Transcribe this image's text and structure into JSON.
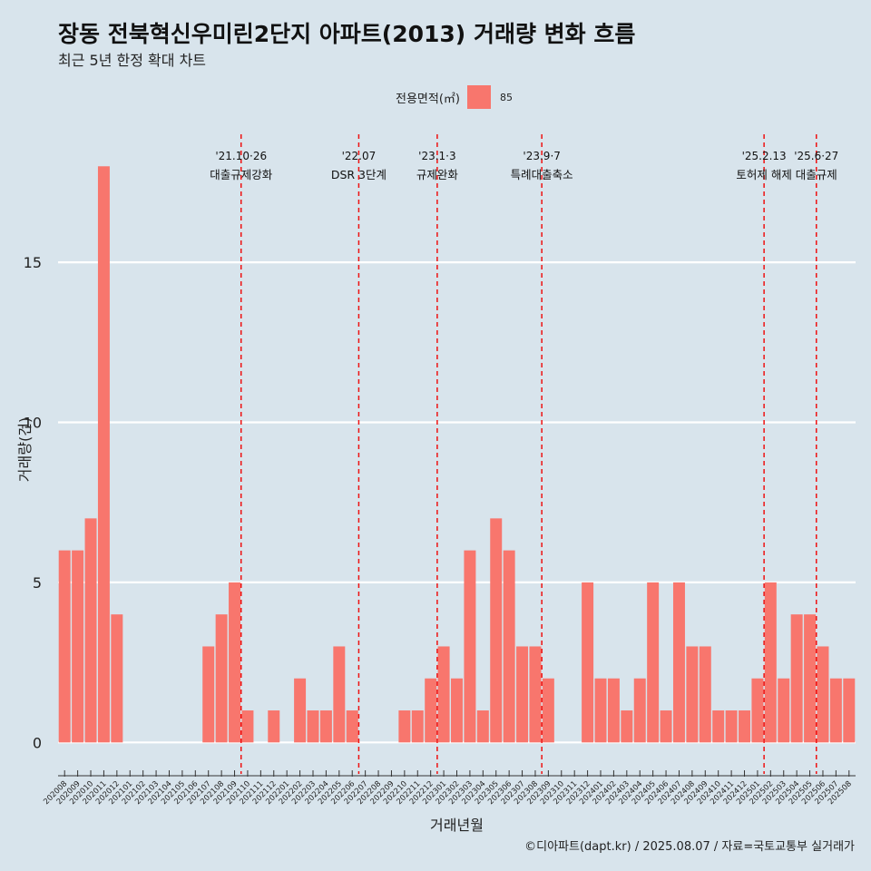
{
  "header": {
    "title": "장동 전북혁신우미린2단지 아파트(2013) 거래량 변화 흐름",
    "subtitle": "최근 5년 한정 확대 차트"
  },
  "legend": {
    "title": "전용면적(㎡)",
    "entries": [
      {
        "label": "85",
        "color": "#f8766d"
      }
    ]
  },
  "caption": "©디아파트(dapt.kr) / 2025.08.07 / 자료=국토교통부 실거래가",
  "chart_data": {
    "type": "bar",
    "title": "장동 전북혁신우미린2단지 아파트(2013) 거래량 변화 흐름",
    "subtitle": "최근 5년 한정 확대 차트",
    "xlabel": "거래년월",
    "ylabel": "거래량(건)",
    "ylim": [
      -0.7,
      19
    ],
    "yticks": [
      0,
      5,
      10,
      15
    ],
    "grid": true,
    "legend_position": "top",
    "bar_color": "#f8766d",
    "categories": [
      "202008",
      "202009",
      "202010",
      "202011",
      "202012",
      "202101",
      "202102",
      "202103",
      "202104",
      "202105",
      "202106",
      "202107",
      "202108",
      "202109",
      "202110",
      "202111",
      "202112",
      "202201",
      "202202",
      "202203",
      "202204",
      "202205",
      "202206",
      "202207",
      "202208",
      "202209",
      "202210",
      "202211",
      "202212",
      "202301",
      "202302",
      "202303",
      "202304",
      "202305",
      "202306",
      "202307",
      "202308",
      "202309",
      "202310",
      "202311",
      "202312",
      "202401",
      "202402",
      "202403",
      "202404",
      "202405",
      "202406",
      "202407",
      "202408",
      "202409",
      "202410",
      "202411",
      "202412",
      "202501",
      "202502",
      "202503",
      "202504",
      "202505",
      "202506",
      "202507",
      "202508"
    ],
    "series": [
      {
        "name": "85",
        "values": [
          6,
          6,
          7,
          18,
          4,
          0,
          0,
          0,
          0,
          0,
          0,
          3,
          4,
          5,
          1,
          0,
          1,
          0,
          2,
          1,
          1,
          3,
          1,
          0,
          0,
          0,
          1,
          1,
          2,
          3,
          2,
          6,
          1,
          7,
          6,
          3,
          3,
          2,
          0,
          0,
          5,
          2,
          2,
          1,
          2,
          5,
          1,
          5,
          3,
          3,
          1,
          1,
          1,
          2,
          5,
          2,
          4,
          4,
          3,
          2,
          2
        ]
      }
    ],
    "annotations": [
      {
        "x": 14.0,
        "date": "'21.10·26",
        "label": "대출규제강화"
      },
      {
        "x": 23.0,
        "date": "'22.07",
        "label": "DSR 3단계"
      },
      {
        "x": 29.0,
        "date": "'23.1·3",
        "label": "규제완화"
      },
      {
        "x": 37.0,
        "date": "'23.9·7",
        "label": "특례대출축소"
      },
      {
        "x": 54.0,
        "date": "'25.2.13",
        "label": "토허제 해제"
      },
      {
        "x": 58.0,
        "date": "'25.6·27",
        "label": "대출규제"
      }
    ]
  }
}
